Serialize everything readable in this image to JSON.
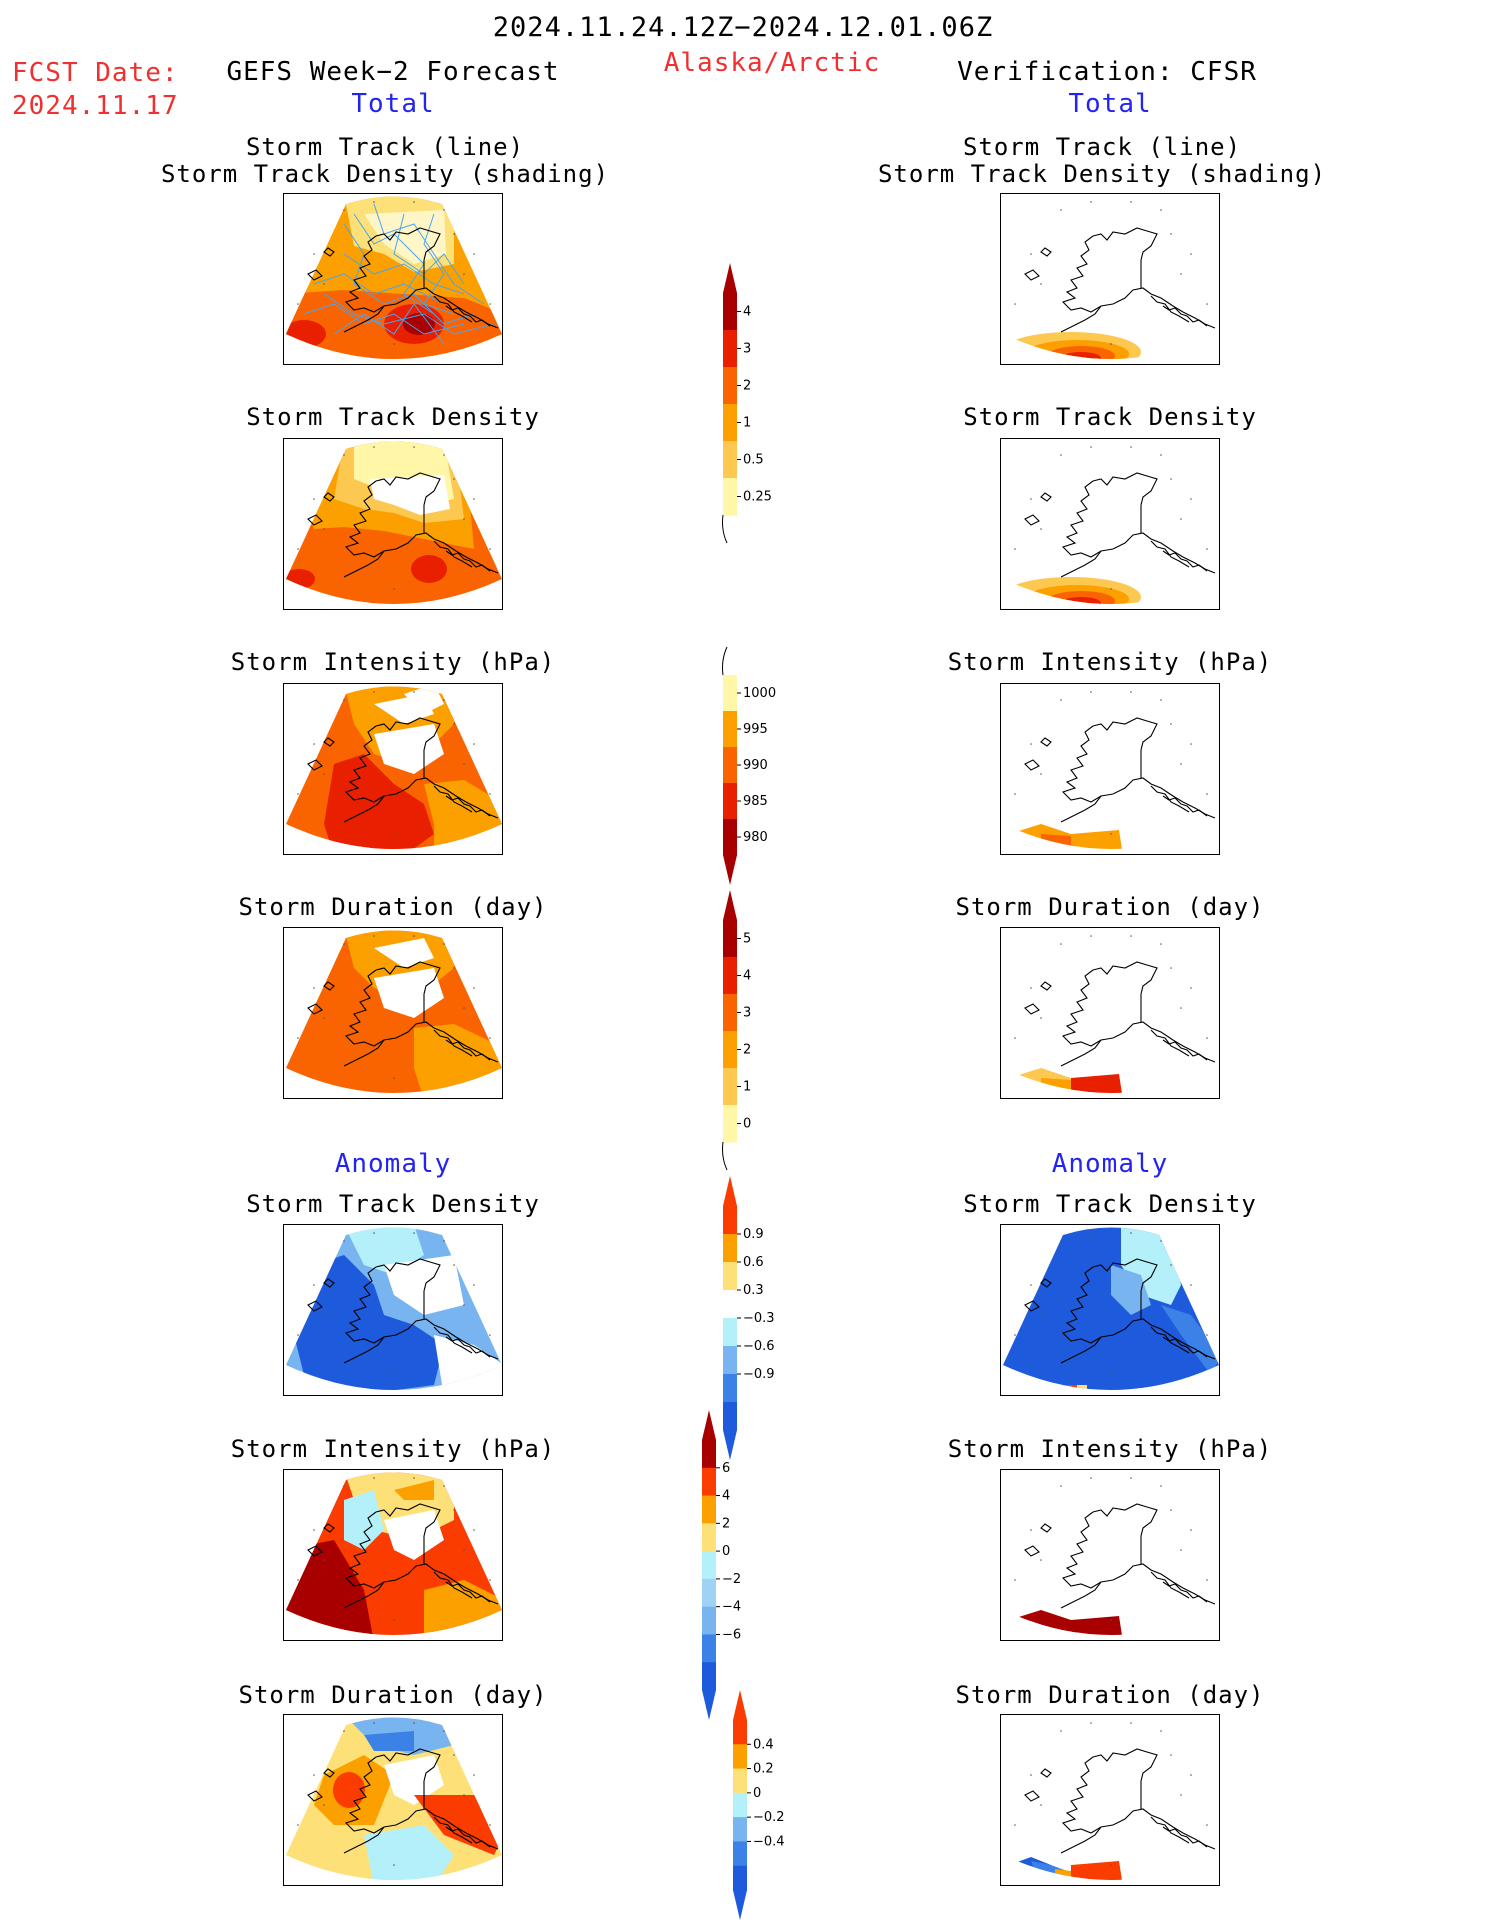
{
  "header": {
    "period": "2024.11.24.12Z−2024.12.01.06Z",
    "fcst_label": "FCST Date:",
    "fcst_date": "2024.11.17",
    "left_title": "GEFS Week−2 Forecast",
    "region": "Alaska/Arctic",
    "right_title": "Verification: CFSR"
  },
  "sections": {
    "total": "Total",
    "anomaly": "Anomaly"
  },
  "panel_titles": {
    "track": [
      "Storm Track (line)",
      "Storm Track Density (shading)"
    ],
    "density": "Storm Track Density",
    "intensity": "Storm Intensity (hPa)",
    "duration": "Storm Duration (day)"
  },
  "colorbars": {
    "density_total": {
      "labels": [
        "4",
        "3",
        "2",
        "1",
        "0.5",
        "0.25"
      ],
      "colors": [
        "#a80000",
        "#e82000",
        "#fa6400",
        "#fca000",
        "#fdc850",
        "#fff6a8"
      ]
    },
    "intensity_total": {
      "labels": [
        "1000",
        "995",
        "990",
        "985",
        "980"
      ],
      "colors": [
        "#fff6a8",
        "#fca000",
        "#fa6400",
        "#e82000",
        "#a80000"
      ]
    },
    "duration_total": {
      "labels": [
        "5",
        "4",
        "3",
        "2",
        "1",
        "0"
      ],
      "colors": [
        "#a80000",
        "#e82000",
        "#fa6400",
        "#fca000",
        "#fdc850",
        "#fff6a8"
      ]
    },
    "density_anom": {
      "labels": [
        "0.9",
        "0.6",
        "0.3",
        "−0.3",
        "−0.6",
        "−0.9"
      ],
      "colors": [
        "#fa3c00",
        "#fca000",
        "#fde178",
        "#ffffff",
        "#b4f0fa",
        "#78b4f0",
        "#3c82e6",
        "#1e5adc"
      ]
    },
    "intensity_anom": {
      "labels": [
        "6",
        "4",
        "2",
        "0",
        "−2",
        "−4",
        "−6"
      ],
      "colors": [
        "#a80000",
        "#fa3c00",
        "#fca000",
        "#fde178",
        "#b4f0fa",
        "#a0d2f5",
        "#78b4f0",
        "#3c82e6",
        "#1e5adc"
      ]
    },
    "duration_anom": {
      "labels": [
        "0.4",
        "0.2",
        "0",
        "−0.2",
        "−0.4"
      ],
      "colors": [
        "#fa3c00",
        "#fca000",
        "#fde178",
        "#b4f0fa",
        "#78b4f0",
        "#3c82e6",
        "#1e5adc"
      ]
    }
  }
}
